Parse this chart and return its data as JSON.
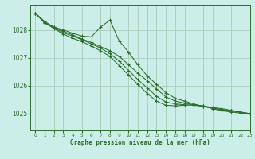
{
  "background_color": "#cceee8",
  "grid_color": "#aaccbb",
  "line_color": "#2d6e2d",
  "marker_color": "#2d6e2d",
  "xlabel": "Graphe pression niveau de la mer (hPa)",
  "ylim": [
    1024.4,
    1028.9
  ],
  "xlim": [
    -0.5,
    23
  ],
  "yticks": [
    1025,
    1026,
    1027,
    1028
  ],
  "xticks": [
    0,
    1,
    2,
    3,
    4,
    5,
    6,
    7,
    8,
    9,
    10,
    11,
    12,
    13,
    14,
    15,
    16,
    17,
    18,
    19,
    20,
    21,
    22,
    23
  ],
  "series": [
    {
      "x": [
        0,
        1,
        2,
        3,
        4,
        5,
        6,
        7,
        8,
        9,
        10,
        11,
        12,
        13,
        14,
        15,
        16,
        17,
        18,
        19,
        20,
        21,
        22,
        23
      ],
      "y": [
        1028.6,
        1028.25,
        1028.1,
        1028.0,
        1027.88,
        1027.78,
        1027.75,
        1028.1,
        1028.35,
        1027.6,
        1027.2,
        1026.75,
        1026.35,
        1026.05,
        1025.75,
        1025.55,
        1025.45,
        1025.35,
        1025.25,
        1025.2,
        1025.15,
        1025.1,
        1025.05,
        1025.0
      ]
    },
    {
      "x": [
        0,
        1,
        2,
        3,
        4,
        5,
        6,
        7,
        8,
        9,
        10,
        11,
        12,
        13,
        14,
        15,
        16,
        17,
        18,
        19,
        20,
        21,
        22,
        23
      ],
      "y": [
        1028.6,
        1028.3,
        1028.1,
        1027.95,
        1027.82,
        1027.68,
        1027.55,
        1027.4,
        1027.25,
        1027.05,
        1026.75,
        1026.45,
        1026.18,
        1025.88,
        1025.6,
        1025.45,
        1025.38,
        1025.32,
        1025.28,
        1025.22,
        1025.18,
        1025.12,
        1025.06,
        1025.0
      ]
    },
    {
      "x": [
        0,
        1,
        2,
        3,
        4,
        5,
        6,
        7,
        8,
        9,
        10,
        11,
        12,
        13,
        14,
        15,
        16,
        17,
        18,
        19,
        20,
        21,
        22,
        23
      ],
      "y": [
        1028.6,
        1028.28,
        1028.08,
        1027.9,
        1027.78,
        1027.65,
        1027.5,
        1027.35,
        1027.15,
        1026.88,
        1026.55,
        1026.22,
        1025.92,
        1025.62,
        1025.42,
        1025.35,
        1025.32,
        1025.3,
        1025.26,
        1025.2,
        1025.14,
        1025.1,
        1025.05,
        1025.0
      ]
    },
    {
      "x": [
        0,
        1,
        2,
        3,
        4,
        5,
        6,
        7,
        8,
        9,
        10,
        11,
        12,
        13,
        14,
        15,
        16,
        17,
        18,
        19,
        20,
        21,
        22,
        23
      ],
      "y": [
        1028.6,
        1028.25,
        1028.05,
        1027.85,
        1027.7,
        1027.58,
        1027.42,
        1027.25,
        1027.05,
        1026.72,
        1026.38,
        1026.05,
        1025.72,
        1025.45,
        1025.3,
        1025.28,
        1025.3,
        1025.32,
        1025.28,
        1025.18,
        1025.1,
        1025.06,
        1025.02,
        1025.0
      ]
    }
  ]
}
